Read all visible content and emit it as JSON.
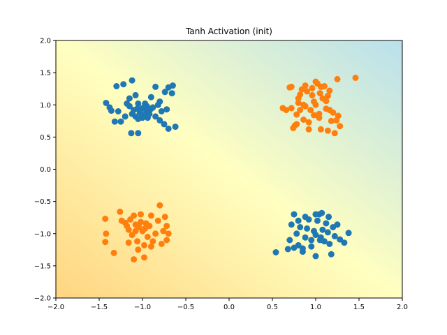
{
  "chart_data": {
    "type": "scatter",
    "title": "Tanh Activation (init)",
    "xlabel": "",
    "ylabel": "",
    "xlim": [
      -2.0,
      2.0
    ],
    "ylim": [
      -2.0,
      2.0
    ],
    "x_ticks": [
      "−2.0",
      "−1.5",
      "−1.0",
      "−0.5",
      "0.0",
      "0.5",
      "1.0",
      "1.5",
      "2.0"
    ],
    "y_ticks": [
      "−2.0",
      "−1.5",
      "−1.0",
      "−0.5",
      "0.0",
      "0.5",
      "1.0",
      "1.5",
      "2.0"
    ],
    "grid": false,
    "background_gradient": {
      "description": "decision surface shading",
      "color_low": "#ffd580",
      "color_mid": "#ffffc0",
      "color_high": "#b8e0ec"
    },
    "series": [
      {
        "color": "#1f77b4",
        "points": [
          [
            -1.42,
            1.03
          ],
          [
            -1.38,
            0.96
          ],
          [
            -1.3,
            1.29
          ],
          [
            -1.22,
            1.32
          ],
          [
            -1.15,
            1.1
          ],
          [
            -1.12,
            1.38
          ],
          [
            -1.08,
            1.15
          ],
          [
            -1.05,
            1.02
          ],
          [
            -1.0,
            0.95
          ],
          [
            -0.95,
            0.98
          ],
          [
            -0.9,
            1.12
          ],
          [
            -0.85,
            1.28
          ],
          [
            -0.8,
            1.05
          ],
          [
            -0.78,
            0.9
          ],
          [
            -0.74,
            1.2
          ],
          [
            -0.7,
            1.27
          ],
          [
            -0.66,
            1.18
          ],
          [
            -0.65,
            1.3
          ],
          [
            -0.72,
            0.93
          ],
          [
            -1.1,
            0.92
          ],
          [
            -1.03,
            0.88
          ],
          [
            -0.98,
            0.84
          ],
          [
            -0.93,
            0.9
          ],
          [
            -1.08,
            0.82
          ],
          [
            -1.12,
            0.86
          ],
          [
            -1.05,
            0.78
          ],
          [
            -1.0,
            0.8
          ],
          [
            -0.92,
            0.86
          ],
          [
            -0.85,
            0.82
          ],
          [
            -0.8,
            0.76
          ],
          [
            -1.15,
            0.98
          ],
          [
            -1.2,
            0.82
          ],
          [
            -1.25,
            0.74
          ],
          [
            -1.32,
            0.74
          ],
          [
            -1.36,
            0.91
          ],
          [
            -1.06,
            0.94
          ],
          [
            -0.96,
            0.92
          ],
          [
            -0.88,
            0.96
          ],
          [
            -0.97,
            1.02
          ],
          [
            -0.75,
            0.7
          ],
          [
            -0.62,
            0.66
          ],
          [
            -0.7,
            0.63
          ],
          [
            -1.13,
            0.56
          ],
          [
            -1.05,
            0.56
          ],
          [
            -1.01,
            0.85
          ],
          [
            -0.94,
            0.8
          ],
          [
            -0.9,
            0.94
          ],
          [
            -1.18,
            1.02
          ],
          [
            -0.82,
            1.0
          ],
          [
            -1.28,
            0.9
          ],
          [
            0.54,
            -1.29
          ],
          [
            0.7,
            -1.1
          ],
          [
            0.72,
            -0.86
          ],
          [
            0.75,
            -0.7
          ],
          [
            0.78,
            -1.0
          ],
          [
            0.8,
            -1.18
          ],
          [
            0.82,
            -0.9
          ],
          [
            0.85,
            -1.23
          ],
          [
            0.88,
            -1.06
          ],
          [
            0.9,
            -0.92
          ],
          [
            0.92,
            -0.78
          ],
          [
            0.95,
            -1.1
          ],
          [
            0.98,
            -0.96
          ],
          [
            1.0,
            -1.02
          ],
          [
            1.02,
            -0.8
          ],
          [
            1.04,
            -0.7
          ],
          [
            1.06,
            -1.06
          ],
          [
            1.08,
            -0.94
          ],
          [
            1.1,
            -1.12
          ],
          [
            1.12,
            -0.84
          ],
          [
            1.14,
            -0.98
          ],
          [
            1.16,
            -1.16
          ],
          [
            1.18,
            -1.32
          ],
          [
            1.2,
            -0.9
          ],
          [
            1.22,
            -1.04
          ],
          [
            1.25,
            -0.86
          ],
          [
            1.28,
            -1.09
          ],
          [
            1.33,
            -1.14
          ],
          [
            1.38,
            -0.99
          ],
          [
            1.0,
            -1.35
          ],
          [
            0.68,
            -1.24
          ],
          [
            0.75,
            -1.22
          ],
          [
            0.85,
            -1.28
          ],
          [
            0.95,
            -1.2
          ],
          [
            1.05,
            -1.1
          ],
          [
            0.8,
            -0.8
          ],
          [
            0.88,
            -0.74
          ],
          [
            1.0,
            -0.7
          ],
          [
            1.07,
            -0.68
          ],
          [
            1.15,
            -0.74
          ]
        ]
      },
      {
        "color": "#ff7f0e",
        "points": [
          [
            0.62,
            0.95
          ],
          [
            0.66,
            0.92
          ],
          [
            0.7,
            1.27
          ],
          [
            0.72,
            1.28
          ],
          [
            0.74,
            0.64
          ],
          [
            0.76,
            0.68
          ],
          [
            0.78,
            0.85
          ],
          [
            0.8,
            1.03
          ],
          [
            0.82,
            1.16
          ],
          [
            0.84,
            1.24
          ],
          [
            0.86,
            0.77
          ],
          [
            0.88,
            0.98
          ],
          [
            0.9,
            1.21
          ],
          [
            0.92,
            0.73
          ],
          [
            0.94,
            0.92
          ],
          [
            0.96,
            1.15
          ],
          [
            0.98,
            0.84
          ],
          [
            1.0,
            1.0
          ],
          [
            1.02,
            1.33
          ],
          [
            1.04,
            0.8
          ],
          [
            1.06,
            0.62
          ],
          [
            1.08,
            1.1
          ],
          [
            1.1,
            1.29
          ],
          [
            1.12,
            0.94
          ],
          [
            1.14,
            1.14
          ],
          [
            1.16,
            1.22
          ],
          [
            1.18,
            0.75
          ],
          [
            1.2,
            0.88
          ],
          [
            1.22,
            0.56
          ],
          [
            1.26,
            0.83
          ],
          [
            1.28,
            0.67
          ],
          [
            1.25,
            1.4
          ],
          [
            1.46,
            1.42
          ],
          [
            0.72,
            0.95
          ],
          [
            0.82,
            0.92
          ],
          [
            0.96,
            1.26
          ],
          [
            1.0,
            1.36
          ],
          [
            1.05,
            1.18
          ],
          [
            1.12,
            1.06
          ],
          [
            0.92,
            0.62
          ],
          [
            1.24,
            0.76
          ],
          [
            1.16,
            0.92
          ],
          [
            0.86,
            1.0
          ],
          [
            0.8,
            1.1
          ],
          [
            1.04,
            0.86
          ],
          [
            0.88,
            1.3
          ],
          [
            0.78,
            0.7
          ],
          [
            1.14,
            0.6
          ],
          [
            1.06,
            1.28
          ],
          [
            0.98,
            1.05
          ],
          [
            -1.43,
            -0.77
          ],
          [
            -1.42,
            -1.0
          ],
          [
            -1.43,
            -1.13
          ],
          [
            -1.33,
            -1.3
          ],
          [
            -1.26,
            -0.66
          ],
          [
            -1.24,
            -0.8
          ],
          [
            -1.2,
            -0.83
          ],
          [
            -1.18,
            -0.88
          ],
          [
            -1.16,
            -0.94
          ],
          [
            -1.14,
            -0.78
          ],
          [
            -1.12,
            -1.02
          ],
          [
            -1.1,
            -0.72
          ],
          [
            -1.08,
            -0.86
          ],
          [
            -1.06,
            -1.12
          ],
          [
            -1.04,
            -0.9
          ],
          [
            -1.02,
            -0.7
          ],
          [
            -1.0,
            -0.96
          ],
          [
            -0.98,
            -1.18
          ],
          [
            -0.96,
            -0.84
          ],
          [
            -0.94,
            -1.05
          ],
          [
            -0.92,
            -0.88
          ],
          [
            -0.9,
            -0.72
          ],
          [
            -0.88,
            -1.12
          ],
          [
            -0.85,
            -1.0
          ],
          [
            -0.82,
            -0.8
          ],
          [
            -0.8,
            -0.56
          ],
          [
            -0.78,
            -1.16
          ],
          [
            -0.76,
            -0.96
          ],
          [
            -0.74,
            -0.74
          ],
          [
            -0.72,
            -0.88
          ],
          [
            -0.7,
            -1.0
          ],
          [
            -1.1,
            -1.4
          ],
          [
            -0.98,
            -1.37
          ],
          [
            -1.05,
            -1.25
          ],
          [
            -1.16,
            -1.14
          ],
          [
            -0.9,
            -1.2
          ],
          [
            -1.08,
            -0.96
          ],
          [
            -0.97,
            -0.92
          ],
          [
            -1.02,
            -0.82
          ],
          [
            -0.72,
            -1.1
          ]
        ]
      }
    ]
  }
}
